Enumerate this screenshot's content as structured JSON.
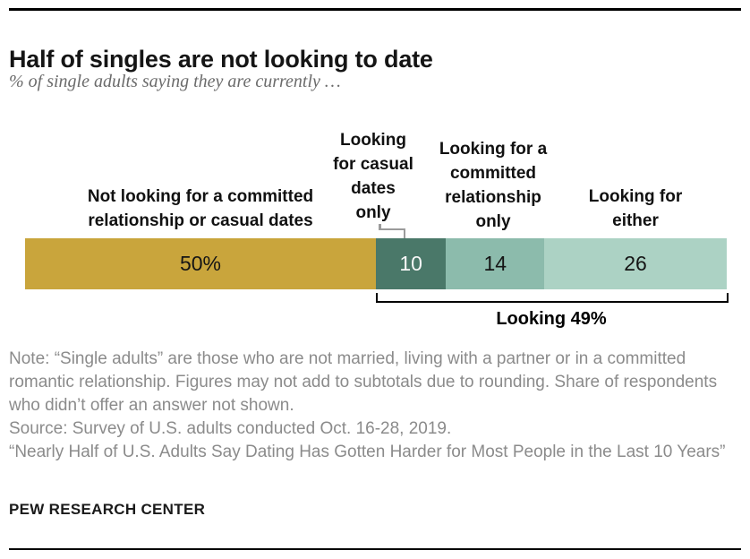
{
  "header": {
    "title": "Half of singles are not looking to date",
    "subtitle": "% of single adults saying they are currently …"
  },
  "chart_data": {
    "type": "bar",
    "subtype": "horizontal-stacked-single-bar",
    "unit": "% of single adults",
    "categories": [
      "Not looking for a committed relationship or casual dates",
      "Looking for casual dates only",
      "Looking for a committed relationship only",
      "Looking for either"
    ],
    "values": [
      50,
      10,
      14,
      26
    ],
    "segments": [
      {
        "label": "Not looking for a committed\nrelationship or casual dates",
        "value": 50,
        "display": "50%",
        "color": "#C9A53C",
        "text_color": "#151515"
      },
      {
        "label": "Looking\nfor casual\ndates\nonly",
        "value": 10,
        "display": "10",
        "color": "#4A7869",
        "text_color": "#f7f7f7"
      },
      {
        "label": "Looking for a\ncommitted\nrelationship\nonly",
        "value": 14,
        "display": "14",
        "color": "#8CBBAC",
        "text_color": "#151515"
      },
      {
        "label": "Looking for\neither",
        "value": 26,
        "display": "26",
        "color": "#ACD2C4",
        "text_color": "#151515"
      }
    ],
    "subtotal": {
      "label": "Looking 49%",
      "value": 49,
      "covers": [
        "Looking for casual dates only",
        "Looking for a committed relationship only",
        "Looking for either"
      ]
    },
    "legend_position": "labels-above-bar",
    "grid": false
  },
  "notes": {
    "note": "Note: “Single adults” are those who are not married, living with a partner or in a committed romantic relationship. Figures may not add to subtotals due to rounding. Share of respondents who didn’t offer an answer not shown.",
    "source": "Source: Survey of U.S. adults conducted Oct. 16-28, 2019.",
    "report": "“Nearly Half of U.S. Adults Say Dating Has Gotten Harder for Most People in the Last 10 Years”"
  },
  "footer": {
    "brand": "PEW RESEARCH CENTER"
  }
}
